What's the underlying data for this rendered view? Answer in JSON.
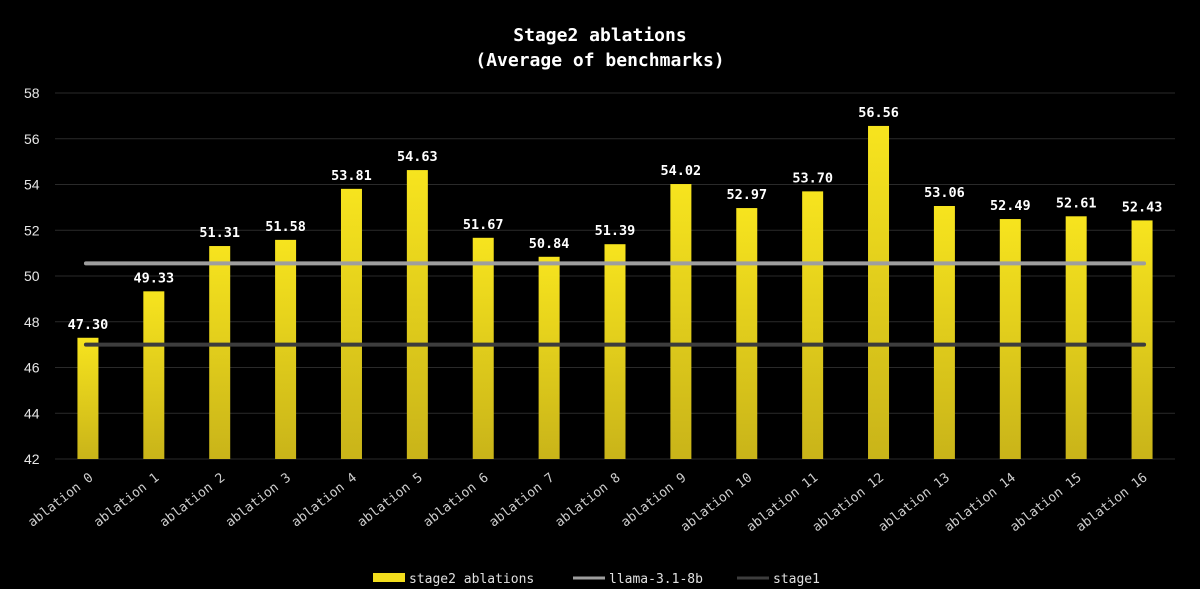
{
  "chart_data": {
    "type": "bar",
    "title": "Stage2 ablations",
    "subtitle": "(Average of benchmarks)",
    "categories": [
      "ablation 0",
      "ablation 1",
      "ablation 2",
      "ablation 3",
      "ablation 4",
      "ablation 5",
      "ablation 6",
      "ablation 7",
      "ablation 8",
      "ablation 9",
      "ablation 10",
      "ablation 11",
      "ablation 12",
      "ablation 13",
      "ablation 14",
      "ablation 15",
      "ablation 16"
    ],
    "series": [
      {
        "name": "stage2 ablations",
        "type": "bar",
        "color": "#f2dd1c",
        "values": [
          47.3,
          49.33,
          51.31,
          51.58,
          53.81,
          54.63,
          51.67,
          50.84,
          51.39,
          54.02,
          52.97,
          53.7,
          56.56,
          53.06,
          52.49,
          52.61,
          52.43
        ],
        "labels": [
          "47.30",
          "49.33",
          "51.31",
          "51.58",
          "53.81",
          "54.63",
          "51.67",
          "50.84",
          "51.39",
          "54.02",
          "52.97",
          "53.70",
          "56.56",
          "53.06",
          "52.49",
          "52.61",
          "52.43"
        ]
      },
      {
        "name": "llama-3.1-8b",
        "type": "line",
        "color": "#9e9e9e",
        "value": 50.55
      },
      {
        "name": "stage1",
        "type": "line",
        "color": "#3d3d3d",
        "value": 47.0
      }
    ],
    "ylim": [
      42,
      58
    ],
    "yticks": [
      42,
      44,
      46,
      48,
      50,
      52,
      54,
      56,
      58
    ],
    "ytick_labels": [
      "42",
      "44",
      "46",
      "48",
      "50",
      "52",
      "54",
      "56",
      "58"
    ],
    "grid": true,
    "legend_position": "bottom-center",
    "xlabel": "",
    "ylabel": ""
  }
}
